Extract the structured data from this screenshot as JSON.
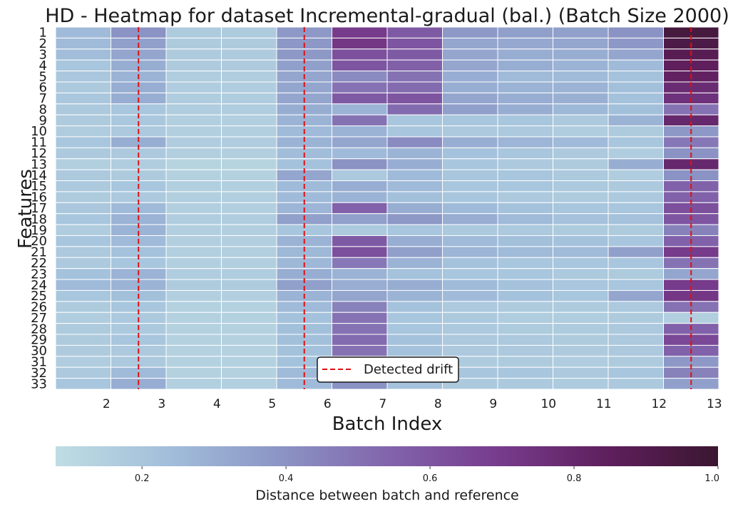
{
  "chart_data": {
    "type": "heatmap",
    "title": "HD - Heatmap for dataset Incremental-gradual (bal.) (Batch Size 2000)",
    "xlabel": "Batch Index",
    "ylabel": "Features",
    "x_ticks": [
      "2",
      "3",
      "4",
      "5",
      "6",
      "7",
      "8",
      "9",
      "10",
      "11",
      "12",
      "13"
    ],
    "y_ticks": [
      "1",
      "2",
      "3",
      "4",
      "5",
      "6",
      "7",
      "8",
      "9",
      "10",
      "11",
      "12",
      "13",
      "14",
      "15",
      "16",
      "17",
      "18",
      "19",
      "20",
      "21",
      "22",
      "23",
      "24",
      "25",
      "26",
      "27",
      "28",
      "29",
      "30",
      "31",
      "32",
      "33"
    ],
    "values": [
      [
        0.25,
        0.4,
        0.17,
        0.17,
        0.38,
        0.7,
        0.58,
        0.38,
        0.35,
        0.35,
        0.4,
        0.95
      ],
      [
        0.25,
        0.35,
        0.17,
        0.17,
        0.38,
        0.72,
        0.6,
        0.33,
        0.32,
        0.33,
        0.38,
        0.92
      ],
      [
        0.24,
        0.33,
        0.17,
        0.17,
        0.38,
        0.62,
        0.58,
        0.33,
        0.3,
        0.3,
        0.33,
        0.88
      ],
      [
        0.2,
        0.3,
        0.17,
        0.17,
        0.35,
        0.6,
        0.56,
        0.33,
        0.3,
        0.28,
        0.25,
        0.85
      ],
      [
        0.19,
        0.28,
        0.16,
        0.16,
        0.33,
        0.42,
        0.5,
        0.3,
        0.25,
        0.25,
        0.22,
        0.83
      ],
      [
        0.18,
        0.3,
        0.16,
        0.16,
        0.33,
        0.5,
        0.52,
        0.3,
        0.28,
        0.28,
        0.23,
        0.78
      ],
      [
        0.19,
        0.3,
        0.16,
        0.16,
        0.33,
        0.58,
        0.6,
        0.33,
        0.3,
        0.29,
        0.22,
        0.75
      ],
      [
        0.18,
        0.2,
        0.16,
        0.16,
        0.3,
        0.28,
        0.52,
        0.35,
        0.3,
        0.26,
        0.23,
        0.5
      ],
      [
        0.17,
        0.19,
        0.15,
        0.15,
        0.28,
        0.5,
        0.2,
        0.2,
        0.2,
        0.18,
        0.28,
        0.8
      ],
      [
        0.16,
        0.18,
        0.15,
        0.15,
        0.25,
        0.28,
        0.2,
        0.18,
        0.18,
        0.16,
        0.17,
        0.38
      ],
      [
        0.2,
        0.3,
        0.16,
        0.16,
        0.28,
        0.33,
        0.42,
        0.3,
        0.27,
        0.25,
        0.2,
        0.48
      ],
      [
        0.18,
        0.18,
        0.15,
        0.15,
        0.24,
        0.25,
        0.28,
        0.22,
        0.2,
        0.18,
        0.16,
        0.4
      ],
      [
        0.15,
        0.16,
        0.13,
        0.13,
        0.22,
        0.4,
        0.3,
        0.2,
        0.18,
        0.17,
        0.3,
        0.8
      ],
      [
        0.18,
        0.17,
        0.14,
        0.14,
        0.33,
        0.18,
        0.25,
        0.2,
        0.2,
        0.18,
        0.16,
        0.4
      ],
      [
        0.18,
        0.2,
        0.15,
        0.15,
        0.25,
        0.3,
        0.25,
        0.2,
        0.2,
        0.18,
        0.18,
        0.55
      ],
      [
        0.17,
        0.18,
        0.15,
        0.15,
        0.25,
        0.28,
        0.23,
        0.2,
        0.18,
        0.17,
        0.18,
        0.55
      ],
      [
        0.19,
        0.25,
        0.15,
        0.15,
        0.27,
        0.55,
        0.3,
        0.25,
        0.22,
        0.2,
        0.2,
        0.62
      ],
      [
        0.2,
        0.28,
        0.16,
        0.16,
        0.35,
        0.35,
        0.38,
        0.3,
        0.25,
        0.22,
        0.22,
        0.6
      ],
      [
        0.16,
        0.28,
        0.15,
        0.15,
        0.2,
        0.18,
        0.2,
        0.18,
        0.18,
        0.17,
        0.17,
        0.45
      ],
      [
        0.2,
        0.25,
        0.15,
        0.15,
        0.28,
        0.58,
        0.3,
        0.25,
        0.23,
        0.22,
        0.2,
        0.55
      ],
      [
        0.18,
        0.22,
        0.15,
        0.15,
        0.26,
        0.62,
        0.35,
        0.27,
        0.25,
        0.25,
        0.35,
        0.7
      ],
      [
        0.18,
        0.2,
        0.15,
        0.15,
        0.26,
        0.48,
        0.28,
        0.22,
        0.2,
        0.2,
        0.2,
        0.5
      ],
      [
        0.22,
        0.28,
        0.16,
        0.16,
        0.3,
        0.28,
        0.22,
        0.2,
        0.2,
        0.18,
        0.17,
        0.33
      ],
      [
        0.25,
        0.28,
        0.17,
        0.17,
        0.35,
        0.3,
        0.3,
        0.25,
        0.22,
        0.2,
        0.2,
        0.7
      ],
      [
        0.2,
        0.23,
        0.15,
        0.15,
        0.28,
        0.33,
        0.28,
        0.25,
        0.22,
        0.2,
        0.33,
        0.72
      ],
      [
        0.17,
        0.2,
        0.14,
        0.14,
        0.25,
        0.45,
        0.22,
        0.18,
        0.17,
        0.17,
        0.18,
        0.5
      ],
      [
        0.16,
        0.18,
        0.14,
        0.14,
        0.22,
        0.5,
        0.2,
        0.18,
        0.16,
        0.16,
        0.17,
        0.15
      ],
      [
        0.17,
        0.18,
        0.14,
        0.14,
        0.23,
        0.5,
        0.2,
        0.18,
        0.17,
        0.17,
        0.18,
        0.55
      ],
      [
        0.17,
        0.2,
        0.14,
        0.14,
        0.23,
        0.52,
        0.22,
        0.18,
        0.18,
        0.17,
        0.18,
        0.65
      ],
      [
        0.17,
        0.18,
        0.14,
        0.14,
        0.22,
        0.5,
        0.22,
        0.18,
        0.18,
        0.17,
        0.18,
        0.55
      ],
      [
        0.16,
        0.18,
        0.14,
        0.14,
        0.22,
        0.48,
        0.2,
        0.17,
        0.17,
        0.16,
        0.17,
        0.38
      ],
      [
        0.18,
        0.25,
        0.14,
        0.14,
        0.25,
        0.52,
        0.25,
        0.2,
        0.2,
        0.18,
        0.2,
        0.45
      ],
      [
        0.2,
        0.3,
        0.15,
        0.15,
        0.25,
        0.4,
        0.22,
        0.18,
        0.18,
        0.17,
        0.18,
        0.35
      ]
    ],
    "drift_lines_at_batch": [
      2.5,
      5.5,
      12.5
    ],
    "legend": {
      "entries": [
        "Detected drift"
      ],
      "placement": "lower-center"
    },
    "colorbar": {
      "label": "Distance between batch and reference",
      "range": [
        0.08,
        1.0
      ],
      "ticks": [
        "0.2",
        "0.4",
        "0.6",
        "0.8",
        "1.0"
      ],
      "tick_values": [
        0.2,
        0.4,
        0.6,
        0.8,
        1.0
      ],
      "colormap": "BuPu"
    },
    "colors": {
      "drift_line": "#e01010",
      "colormap_stops": [
        "#bfdde3",
        "#a2bfdb",
        "#8c96c6",
        "#8265ac",
        "#773c8d",
        "#5f1f5d",
        "#3a1630"
      ]
    },
    "grid": false
  }
}
